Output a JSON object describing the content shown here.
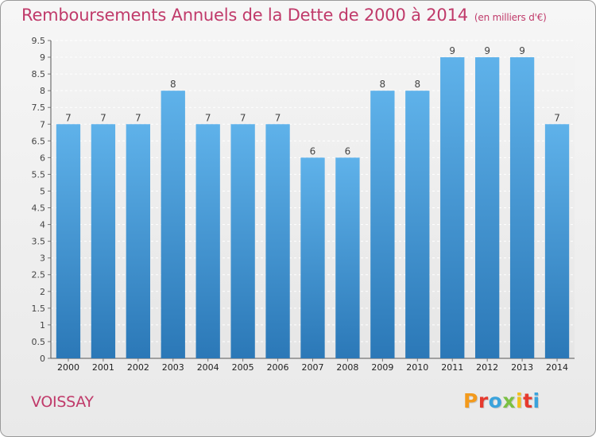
{
  "title": "Remboursements Annuels de la Dette de 2000 à 2014",
  "unit_note": "(en milliers d'€)",
  "commune": "VOISSAY",
  "logo": {
    "text": "Proxiti",
    "colors": [
      "#f39a1c",
      "#e63a2e",
      "#3aa3dc",
      "#7bc043",
      "#f3c11c",
      "#e63a2e",
      "#3aa3dc"
    ]
  },
  "colors": {
    "bar_top": "#5fb2ea",
    "bar_bottom": "#2b78b7",
    "title": "#c03a6a"
  },
  "chart_data": {
    "type": "bar",
    "title": "Remboursements Annuels de la Dette de 2000 à 2014",
    "xlabel": "",
    "ylabel": "",
    "categories": [
      "2000",
      "2001",
      "2002",
      "2003",
      "2004",
      "2005",
      "2006",
      "2007",
      "2008",
      "2009",
      "2010",
      "2011",
      "2012",
      "2013",
      "2014"
    ],
    "values": [
      7,
      7,
      7,
      8,
      7,
      7,
      7,
      6,
      6,
      8,
      8,
      9,
      9,
      9,
      7
    ],
    "data_labels": [
      "7",
      "7",
      "7",
      "8",
      "7",
      "7",
      "7",
      "6",
      "6",
      "8",
      "8",
      "9",
      "9",
      "9",
      "7"
    ],
    "ylim": [
      0,
      9.5
    ],
    "yticks": [
      0,
      0.5,
      1,
      1.5,
      2,
      2.5,
      3,
      3.5,
      4,
      4.5,
      5,
      5.5,
      6,
      6.5,
      7,
      7.5,
      8,
      8.5,
      9,
      9.5
    ],
    "ytick_labels": [
      "0",
      "0.5",
      "1",
      "1.5",
      "2",
      "2.5",
      "3",
      "3.5",
      "4",
      "4.5",
      "5",
      "5.5",
      "6",
      "6.5",
      "7",
      "7.5",
      "8",
      "8.5",
      "9",
      "9.5"
    ],
    "grid": true,
    "legend": "none"
  }
}
